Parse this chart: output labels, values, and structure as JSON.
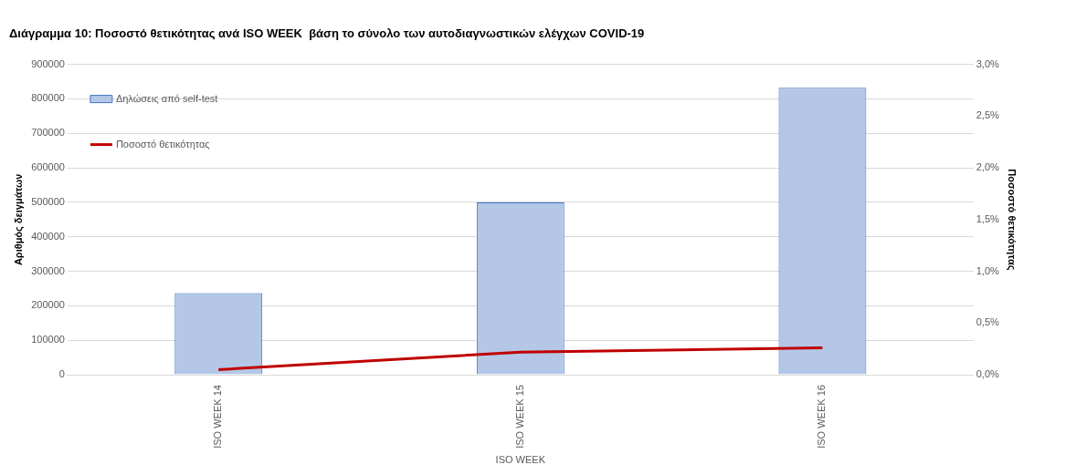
{
  "chart_data": {
    "type": "bar",
    "title": "Διάγραμμα 10: Ποσοστό θετικότητας ανά ISO WEEK  βάση το σύνολο των αυτοδιαγνωστικών ελέγχων COVID-19",
    "xlabel": "ISO WEEK",
    "ylabel": "Αριθμός δειγμάτων",
    "y2label": "Ποσοστό θετικότητας",
    "categories": [
      "ISO WEEK 14",
      "ISO WEEK 15",
      "ISO WEEK 16"
    ],
    "series": [
      {
        "name": "Δηλώσεις από self-test",
        "color": "#b4c7e7",
        "values": [
          237000,
          500000,
          832000
        ]
      },
      {
        "name": "Ποσοστό θετικότητας",
        "type": "line",
        "axis": "y2",
        "color": "#c00000",
        "values": [
          0.05,
          0.22,
          0.26
        ]
      }
    ],
    "ylim": [
      0,
      900000
    ],
    "yticks": [
      0,
      100000,
      200000,
      300000,
      400000,
      500000,
      600000,
      700000,
      800000,
      900000
    ],
    "y2lim": [
      0,
      3
    ],
    "y2ticks": [
      {
        "value": 0,
        "label": "0,0%"
      },
      {
        "value": 0.5,
        "label": "0,5%"
      },
      {
        "value": 1,
        "label": "1,0%"
      },
      {
        "value": 1.5,
        "label": "1,5%"
      },
      {
        "value": 2,
        "label": "2,0%"
      },
      {
        "value": 2.5,
        "label": "2,5%"
      },
      {
        "value": 3,
        "label": "3,0%"
      }
    ],
    "grid": "y",
    "legend": "top left",
    "marker": "none",
    "line_style": "solid"
  }
}
